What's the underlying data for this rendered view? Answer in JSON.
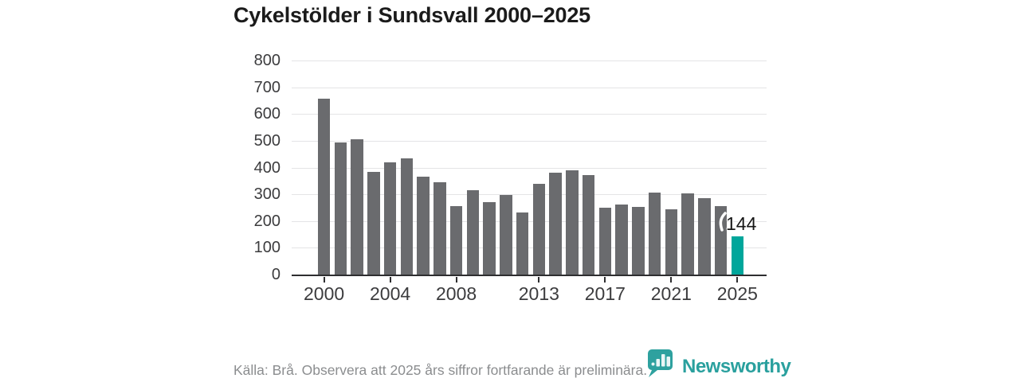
{
  "title": "Cykelstölder i Sundsvall 2000–2025",
  "chart_data": {
    "type": "bar",
    "title": "Cykelstölder i Sundsvall 2000–2025",
    "categories": [
      2000,
      2001,
      2002,
      2003,
      2004,
      2005,
      2006,
      2007,
      2008,
      2009,
      2010,
      2011,
      2012,
      2013,
      2014,
      2015,
      2016,
      2017,
      2018,
      2019,
      2020,
      2021,
      2022,
      2023,
      2024,
      2025
    ],
    "values": [
      657,
      494,
      506,
      383,
      420,
      433,
      367,
      345,
      257,
      314,
      272,
      296,
      233,
      338,
      382,
      389,
      371,
      251,
      261,
      253,
      307,
      243,
      303,
      286,
      257,
      144
    ],
    "ylim": [
      0,
      800
    ],
    "ytick_step": 100,
    "yticks": [
      0,
      100,
      200,
      300,
      400,
      500,
      600,
      700,
      800
    ],
    "xtick_labels": [
      2000,
      2004,
      2008,
      2013,
      2017,
      2021,
      2025
    ],
    "grid": "horizontal",
    "legend": "none",
    "bar_color": "#6a6b6e",
    "highlight": {
      "category": 2025,
      "color": "#00a69b",
      "data_label": "144"
    }
  },
  "annotation": {
    "last_value_label": "144"
  },
  "footer": {
    "source_note": "Källa: Brå. Observera att 2025 års siffror fortfarande är preliminära."
  },
  "logo": {
    "brand": "Newsworthy",
    "color": "#2aa09e",
    "icon": "newsworthy-bubble-barchart-icon"
  },
  "colors": {
    "background": "#ffffff",
    "title_text": "#1b1b1b",
    "axis_text": "#3c3c3e",
    "axis_line": "#2e2e30",
    "gridline": "#e4e4e6",
    "footer_text": "#8b8d8f"
  }
}
